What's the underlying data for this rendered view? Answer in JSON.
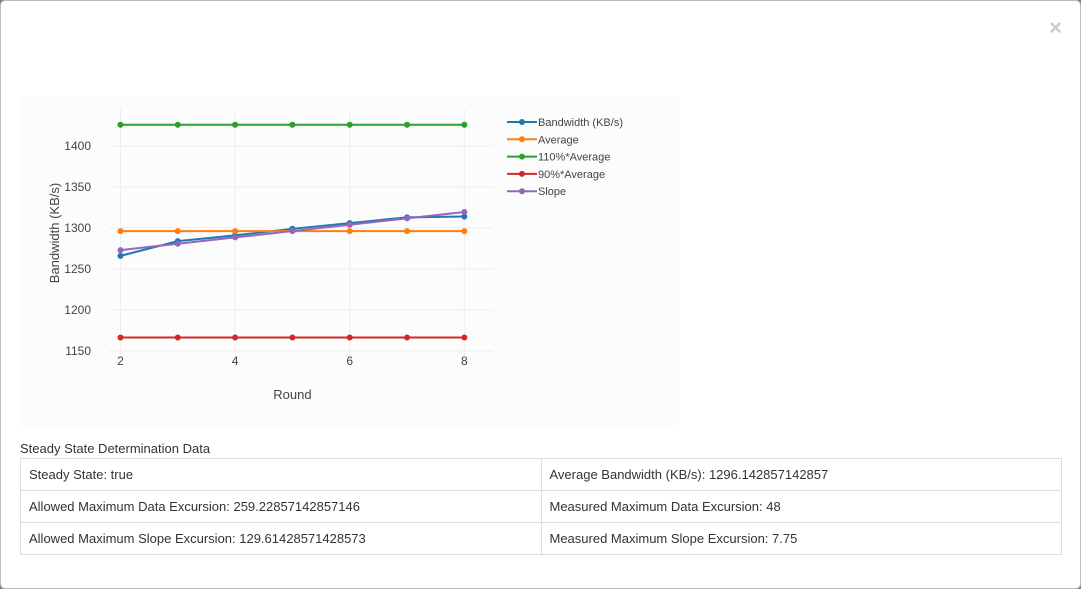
{
  "close_icon": "times-icon",
  "chart_data": {
    "type": "line",
    "x": [
      2,
      3,
      4,
      5,
      6,
      7,
      8
    ],
    "xlabel": "Round",
    "ylabel": "Bandwidth (KB/s)",
    "xticks": [
      2,
      4,
      6,
      8
    ],
    "yticks": [
      1150,
      1200,
      1250,
      1300,
      1350,
      1400
    ],
    "xlim": [
      1.8,
      8.5
    ],
    "ylim": [
      1144,
      1445
    ],
    "grid": true,
    "legend_position": "right",
    "series": [
      {
        "name": "Bandwidth (KB/s)",
        "color": "#1f77b4",
        "values": [
          1266,
          1284,
          1291,
          1299,
          1306,
          1313,
          1314
        ]
      },
      {
        "name": "Average",
        "color": "#ff7f0e",
        "values": [
          1296.14,
          1296.14,
          1296.14,
          1296.14,
          1296.14,
          1296.14,
          1296.14
        ]
      },
      {
        "name": "110%*Average",
        "color": "#2ca02c",
        "values": [
          1425.76,
          1425.76,
          1425.76,
          1425.76,
          1425.76,
          1425.76,
          1425.76
        ]
      },
      {
        "name": "90%*Average",
        "color": "#d62728",
        "values": [
          1166.53,
          1166.53,
          1166.53,
          1166.53,
          1166.53,
          1166.53,
          1166.53
        ]
      },
      {
        "name": "Slope",
        "color": "#9467bd",
        "values": [
          1273,
          1280.75,
          1288.5,
          1296.25,
          1304,
          1311.75,
          1319.5
        ]
      }
    ]
  },
  "table": {
    "title": "Steady State Determination Data",
    "rows": [
      [
        "Steady State: true",
        "Average Bandwidth (KB/s): 1296.142857142857"
      ],
      [
        "Allowed Maximum Data Excursion: 259.22857142857146",
        "Measured Maximum Data Excursion: 48"
      ],
      [
        "Allowed Maximum Slope Excursion: 129.61428571428573",
        "Measured Maximum Slope Excursion: 7.75"
      ]
    ]
  }
}
